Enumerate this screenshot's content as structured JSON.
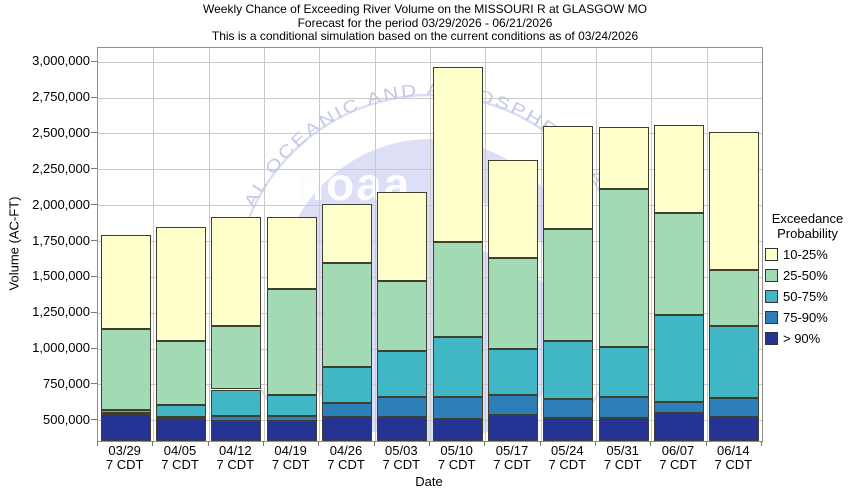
{
  "title_lines": [
    "Weekly Chance of Exceeding River Volume on the MISSOURI R at GLASGOW MO",
    "Forecast for the period 03/29/2026 - 06/21/2026",
    "This is a conditional simulation based on the current conditions as of 03/24/2026"
  ],
  "y_axis": {
    "label": "Volume (AC-FT)",
    "ticks": [
      {
        "label": "500,000",
        "value": 500000
      },
      {
        "label": "750,000",
        "value": 750000
      },
      {
        "label": "1,000,000",
        "value": 1000000
      },
      {
        "label": "1,250,000",
        "value": 1250000
      },
      {
        "label": "1,500,000",
        "value": 1500000
      },
      {
        "label": "1,750,000",
        "value": 1750000
      },
      {
        "label": "2,000,000",
        "value": 2000000
      },
      {
        "label": "2,250,000",
        "value": 2250000
      },
      {
        "label": "2,500,000",
        "value": 2500000
      },
      {
        "label": "2,750,000",
        "value": 2750000
      },
      {
        "label": "3,000,000",
        "value": 3000000
      }
    ]
  },
  "x_axis": {
    "label": "Date",
    "tick_line2": "7 CDT"
  },
  "legend": {
    "title_lines": [
      "Exceedance",
      "Probability"
    ],
    "items": [
      {
        "label": "10-25%",
        "color": "#ffffcc"
      },
      {
        "label": "25-50%",
        "color": "#a1dab4"
      },
      {
        "label": "50-75%",
        "color": "#41b6c4"
      },
      {
        "label": "75-90%",
        "color": "#2c7fb8"
      },
      {
        "label": "> 90%",
        "color": "#253494"
      }
    ]
  },
  "watermark": {
    "name": "noaa-logo",
    "arc_text": "AL OCEANIC AND ATMOSPHERIC A",
    "wordmark": "noaa"
  },
  "chart_data": {
    "type": "bar",
    "stacked": true,
    "unit": "AC-FT",
    "title": "Weekly Chance of Exceeding River Volume on the MISSOURI R at GLASGOW MO",
    "xlabel": "Date",
    "ylabel": "Volume (AC-FT)",
    "ylim": [
      356000,
      3096000
    ],
    "grid": true,
    "legend_position": "right",
    "values_meaning": "cumulative top of each stacked exceedance band in AC-FT; bars are drawn from the axis minimum",
    "categories": [
      "03/29",
      "04/05",
      "04/12",
      "04/19",
      "04/26",
      "05/03",
      "05/10",
      "05/17",
      "05/24",
      "05/31",
      "06/07",
      "06/14"
    ],
    "series": [
      {
        "name": "> 90%",
        "color": "#253494",
        "values": [
          545000,
          506000,
          498000,
          494000,
          526000,
          520000,
          512000,
          538000,
          517000,
          515000,
          550000,
          525000
        ]
      },
      {
        "name": "75-90%",
        "color": "#2c7fb8",
        "values": [
          553000,
          520000,
          528000,
          533000,
          620000,
          660000,
          660000,
          680000,
          650000,
          660000,
          625000,
          655000
        ]
      },
      {
        "name": "50-75%",
        "color": "#41b6c4",
        "values": [
          575000,
          605000,
          715000,
          680000,
          870000,
          980000,
          1080000,
          1000000,
          1050000,
          1010000,
          1233000,
          1160000
        ]
      },
      {
        "name": "25-50%",
        "color": "#a1dab4",
        "values": [
          1140000,
          1055000,
          1158000,
          1415000,
          1595000,
          1470000,
          1745000,
          1635000,
          1835000,
          2115000,
          1945000,
          1550000
        ]
      },
      {
        "name": "10-25%",
        "color": "#ffffcc",
        "values": [
          1790000,
          1850000,
          1920000,
          1920000,
          2010000,
          2090000,
          2965000,
          2315000,
          2550000,
          2545000,
          2560000,
          2510000
        ]
      }
    ]
  }
}
